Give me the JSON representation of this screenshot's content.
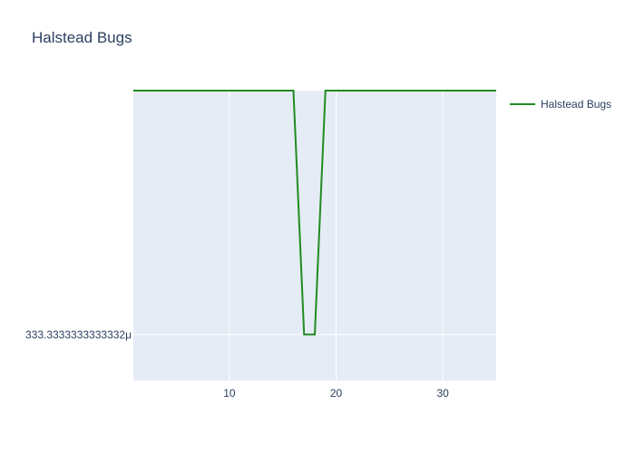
{
  "chart_data": {
    "type": "line",
    "title": "Halstead Bugs",
    "xlabel": "",
    "ylabel": "",
    "xlim": [
      1,
      35
    ],
    "x_ticks": [
      10,
      20,
      30
    ],
    "y_ticks": [
      {
        "value": 0.00033333333333332,
        "label": "333.3333333333332μ"
      }
    ],
    "grid": true,
    "legend_position": "top-right",
    "series": [
      {
        "name": "Halstead Bugs",
        "color": "#228B22",
        "x": [
          1,
          2,
          3,
          4,
          5,
          6,
          7,
          8,
          9,
          10,
          11,
          12,
          13,
          14,
          15,
          16,
          17,
          18,
          19,
          20,
          21,
          22,
          23,
          24,
          25,
          26,
          27,
          28,
          29,
          30,
          31,
          32,
          33,
          34,
          35
        ],
        "y": [
          0.001,
          0.001,
          0.001,
          0.001,
          0.001,
          0.001,
          0.001,
          0.001,
          0.001,
          0.001,
          0.001,
          0.001,
          0.001,
          0.001,
          0.001,
          0.001,
          0.00033333333333332,
          0.00033333333333332,
          0.001,
          0.001,
          0.001,
          0.001,
          0.001,
          0.001,
          0.001,
          0.001,
          0.001,
          0.001,
          0.001,
          0.001,
          0.001,
          0.001,
          0.001,
          0.001,
          0.001
        ]
      }
    ]
  }
}
